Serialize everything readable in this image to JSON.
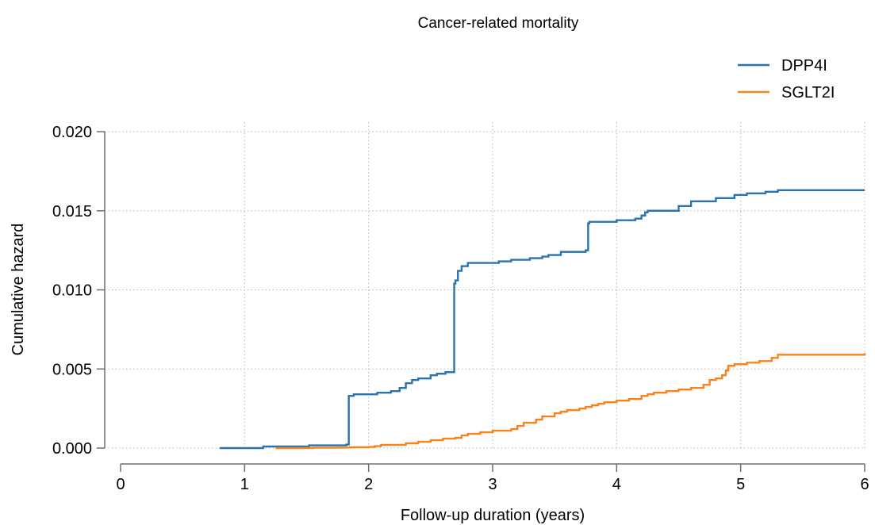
{
  "chart_data": {
    "type": "line",
    "title": "Cancer-related mortality",
    "xlabel": "Follow-up duration (years)",
    "ylabel": "Cumulative hazard",
    "xlim": [
      0,
      6
    ],
    "ylim": [
      0,
      0.02
    ],
    "x_ticks": [
      0,
      1,
      2,
      3,
      4,
      5,
      6
    ],
    "x_tick_labels": [
      "0",
      "1",
      "2",
      "3",
      "4",
      "5",
      "6"
    ],
    "y_ticks": [
      0,
      0.005,
      0.01,
      0.015,
      0.02
    ],
    "y_tick_labels": [
      "0.000",
      "0.005",
      "0.010",
      "0.015",
      "0.020"
    ],
    "grid": true,
    "legend_position": "top-right",
    "series": [
      {
        "name": "DPP4I",
        "color": "#2a74ab",
        "step": true,
        "x": [
          0.8,
          1.15,
          1.52,
          1.82,
          1.84,
          1.88,
          2.07,
          2.18,
          2.25,
          2.3,
          2.35,
          2.4,
          2.5,
          2.55,
          2.62,
          2.69,
          2.7,
          2.72,
          2.75,
          2.8,
          2.9,
          3.05,
          3.15,
          3.3,
          3.4,
          3.45,
          3.55,
          3.7,
          3.75,
          3.77,
          3.78,
          3.8,
          4.0,
          4.15,
          4.2,
          4.23,
          4.25,
          4.5,
          4.6,
          4.8,
          4.95,
          5.05,
          5.2,
          5.3,
          6.0
        ],
        "y": [
          0.0,
          0.0001,
          0.00017,
          0.00022,
          0.0033,
          0.0034,
          0.0035,
          0.0036,
          0.0038,
          0.0041,
          0.0043,
          0.0044,
          0.0046,
          0.0047,
          0.0048,
          0.0104,
          0.0106,
          0.0112,
          0.0115,
          0.0117,
          0.0117,
          0.0118,
          0.0119,
          0.012,
          0.0121,
          0.0122,
          0.0124,
          0.0124,
          0.0125,
          0.0142,
          0.0143,
          0.0143,
          0.0144,
          0.0145,
          0.0147,
          0.0149,
          0.015,
          0.0153,
          0.0156,
          0.0158,
          0.016,
          0.0161,
          0.0162,
          0.0163,
          0.0163
        ]
      },
      {
        "name": "SGLT2I",
        "color": "#f4841e",
        "step": true,
        "x": [
          1.25,
          1.55,
          1.75,
          1.85,
          2.0,
          2.05,
          2.1,
          2.3,
          2.4,
          2.5,
          2.6,
          2.7,
          2.75,
          2.8,
          2.9,
          3.0,
          3.15,
          3.2,
          3.25,
          3.35,
          3.4,
          3.5,
          3.55,
          3.6,
          3.7,
          3.75,
          3.8,
          3.85,
          3.9,
          4.0,
          4.1,
          4.2,
          4.25,
          4.3,
          4.4,
          4.5,
          4.6,
          4.7,
          4.75,
          4.8,
          4.85,
          4.88,
          4.9,
          4.95,
          5.05,
          5.15,
          5.25,
          5.3,
          6.0
        ],
        "y": [
          0.0,
          2e-05,
          3e-05,
          5e-05,
          7e-05,
          0.00012,
          0.0002,
          0.0003,
          0.0004,
          0.0005,
          0.0006,
          0.00065,
          0.0008,
          0.0009,
          0.001,
          0.0011,
          0.0012,
          0.0014,
          0.0016,
          0.0018,
          0.002,
          0.0022,
          0.0023,
          0.0024,
          0.0025,
          0.0026,
          0.0027,
          0.0028,
          0.0029,
          0.003,
          0.0031,
          0.0033,
          0.0034,
          0.0035,
          0.0036,
          0.0037,
          0.0038,
          0.004,
          0.0043,
          0.0044,
          0.0046,
          0.0049,
          0.0052,
          0.0053,
          0.0054,
          0.0055,
          0.0057,
          0.0059,
          0.006
        ]
      }
    ]
  }
}
